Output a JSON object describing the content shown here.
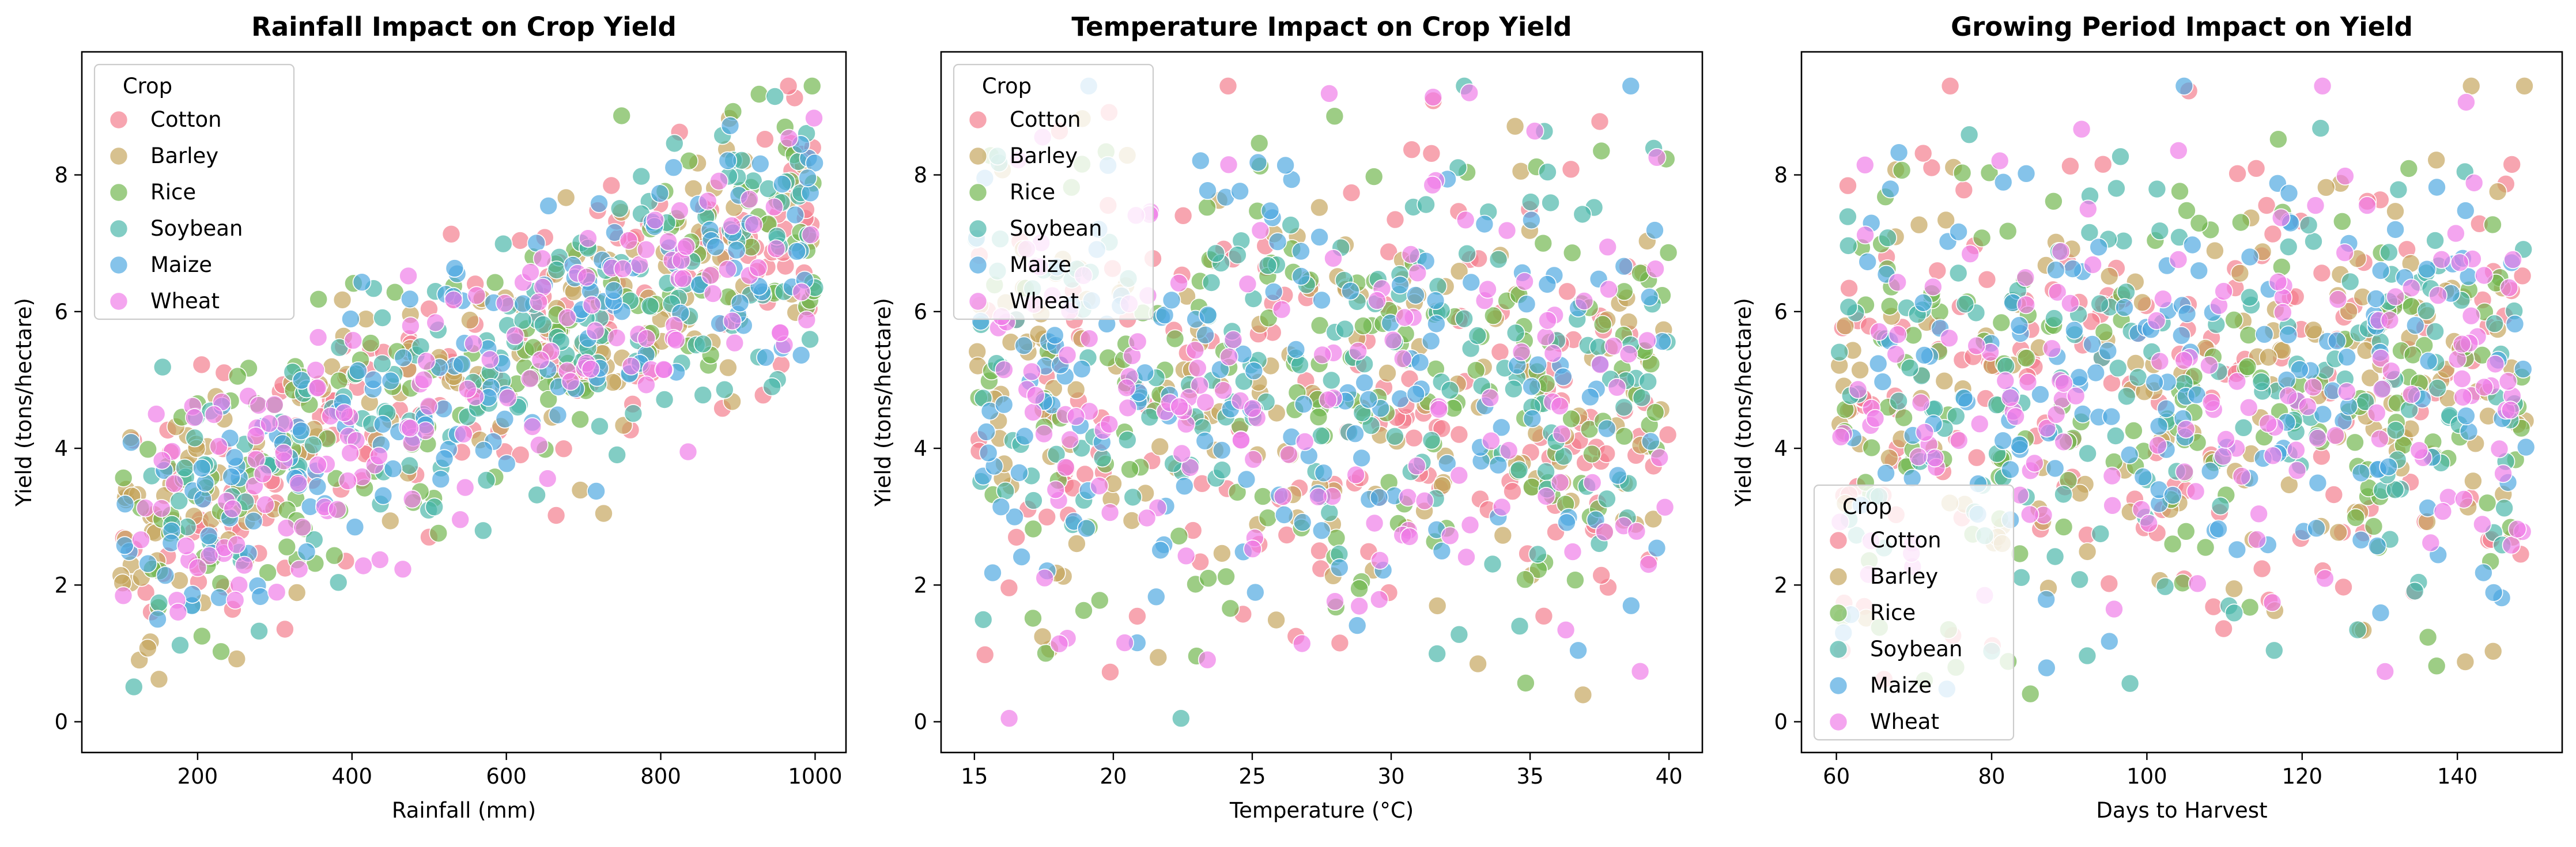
{
  "chart_data": [
    {
      "type": "scatter",
      "title": "Rainfall Impact on Crop Yield",
      "xlabel": "Rainfall (mm)",
      "ylabel": "Yield (tons/hectare)",
      "xlim": [
        50,
        1040
      ],
      "ylim": [
        -0.45,
        9.8
      ],
      "xticks": [
        200,
        400,
        600,
        800,
        1000
      ],
      "yticks": [
        0,
        2,
        4,
        6,
        8
      ],
      "legend_title": "Crop",
      "legend_position": "top-left",
      "grid": false,
      "trend": {
        "slope": 0.0053,
        "intercept": 2.1,
        "noise": 1.0
      },
      "series": [
        {
          "name": "Cotton",
          "color": "#f37a8a",
          "count": 162
        },
        {
          "name": "Barley",
          "color": "#c4a35a",
          "count": 162
        },
        {
          "name": "Rice",
          "color": "#6fb64b",
          "count": 162
        },
        {
          "name": "Soybean",
          "color": "#47b6a8",
          "count": 162
        },
        {
          "name": "Maize",
          "color": "#4ba6e0",
          "count": 162
        },
        {
          "name": "Wheat",
          "color": "#ef7ae8",
          "count": 162
        }
      ],
      "xrange": [
        100,
        1000
      ]
    },
    {
      "type": "scatter",
      "title": "Temperature Impact on Crop Yield",
      "xlabel": "Temperature (°C)",
      "ylabel": "Yield (tons/hectare)",
      "xlim": [
        13.8,
        41.2
      ],
      "ylim": [
        -0.45,
        9.8
      ],
      "xticks": [
        15,
        20,
        25,
        30,
        35,
        40
      ],
      "yticks": [
        0,
        2,
        4,
        6,
        8
      ],
      "legend_title": "Crop",
      "legend_position": "top-left",
      "grid": false,
      "trend": {
        "slope": 0.0,
        "intercept": 4.9,
        "noise": 1.75
      },
      "series": [
        {
          "name": "Cotton",
          "color": "#f37a8a",
          "count": 162
        },
        {
          "name": "Barley",
          "color": "#c4a35a",
          "count": 162
        },
        {
          "name": "Rice",
          "color": "#6fb64b",
          "count": 162
        },
        {
          "name": "Soybean",
          "color": "#47b6a8",
          "count": 162
        },
        {
          "name": "Maize",
          "color": "#4ba6e0",
          "count": 162
        },
        {
          "name": "Wheat",
          "color": "#ef7ae8",
          "count": 162
        }
      ],
      "xrange": [
        15,
        40
      ]
    },
    {
      "type": "scatter",
      "title": "Growing Period Impact on Yield",
      "xlabel": "Days to Harvest",
      "ylabel": "Yield (tons/hectare)",
      "xlim": [
        55.5,
        153.5
      ],
      "ylim": [
        -0.45,
        9.8
      ],
      "xticks": [
        60,
        80,
        100,
        120,
        140
      ],
      "yticks": [
        0,
        2,
        4,
        6,
        8
      ],
      "legend_title": "Crop",
      "legend_position": "bottom-left",
      "grid": false,
      "trend": {
        "slope": 0.0,
        "intercept": 4.9,
        "noise": 1.75
      },
      "series": [
        {
          "name": "Cotton",
          "color": "#f37a8a",
          "count": 162
        },
        {
          "name": "Barley",
          "color": "#c4a35a",
          "count": 162
        },
        {
          "name": "Rice",
          "color": "#6fb64b",
          "count": 162
        },
        {
          "name": "Soybean",
          "color": "#47b6a8",
          "count": 162
        },
        {
          "name": "Maize",
          "color": "#4ba6e0",
          "count": 162
        },
        {
          "name": "Wheat",
          "color": "#ef7ae8",
          "count": 162
        }
      ],
      "xrange": [
        60,
        149
      ]
    }
  ]
}
